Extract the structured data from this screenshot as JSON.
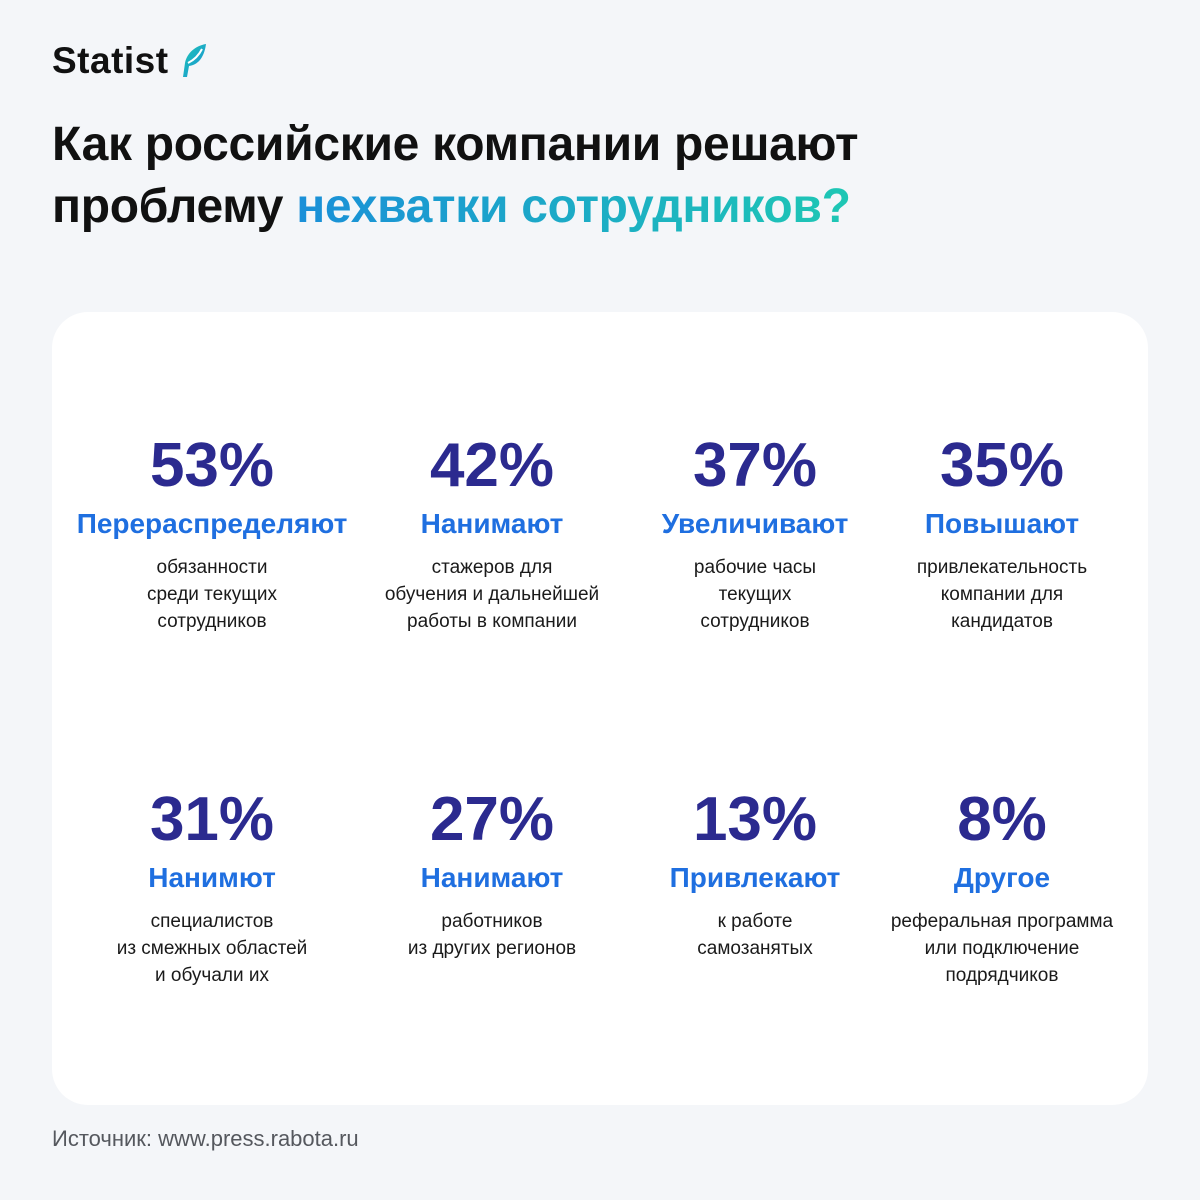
{
  "brand": {
    "name": "Statist",
    "icon": "statist-feather-logo-icon",
    "colors": {
      "accent_gradient_start": "#1a8fd8",
      "accent_gradient_end": "#1ec7b4",
      "value_color": "#2b2a8f",
      "label_color": "#1f6fe0"
    }
  },
  "headline": {
    "line1": "Как российские компании решают",
    "line2_plain": "проблему",
    "line2_accent": "нехватки сотрудников?"
  },
  "stats": [
    {
      "value": "53%",
      "label": "Перераспределяют",
      "desc": "обязанности\nсреди текущих\nсотрудников"
    },
    {
      "value": "42%",
      "label": "Нанимают",
      "desc": "стажеров для\nобучения и дальнейшей\nработы в компании"
    },
    {
      "value": "37%",
      "label": "Увеличивают",
      "desc": "рабочие часы\nтекущих\nсотрудников"
    },
    {
      "value": "35%",
      "label": "Повышают",
      "desc": "привлекательность\nкомпании для\nкандидатов"
    },
    {
      "value": "31%",
      "label": "Нанимют",
      "desc": "специалистов\nиз смежных областей\nи обучали их"
    },
    {
      "value": "27%",
      "label": "Нанимают",
      "desc": "работников\nиз других регионов"
    },
    {
      "value": "13%",
      "label": "Привлекают",
      "desc": "к работе\nсамозанятых"
    },
    {
      "value": "8%",
      "label": "Другое",
      "desc": "реферальная программа\nили подключение\nподрядчиков"
    }
  ],
  "source": "Источник: www.press.rabota.ru"
}
